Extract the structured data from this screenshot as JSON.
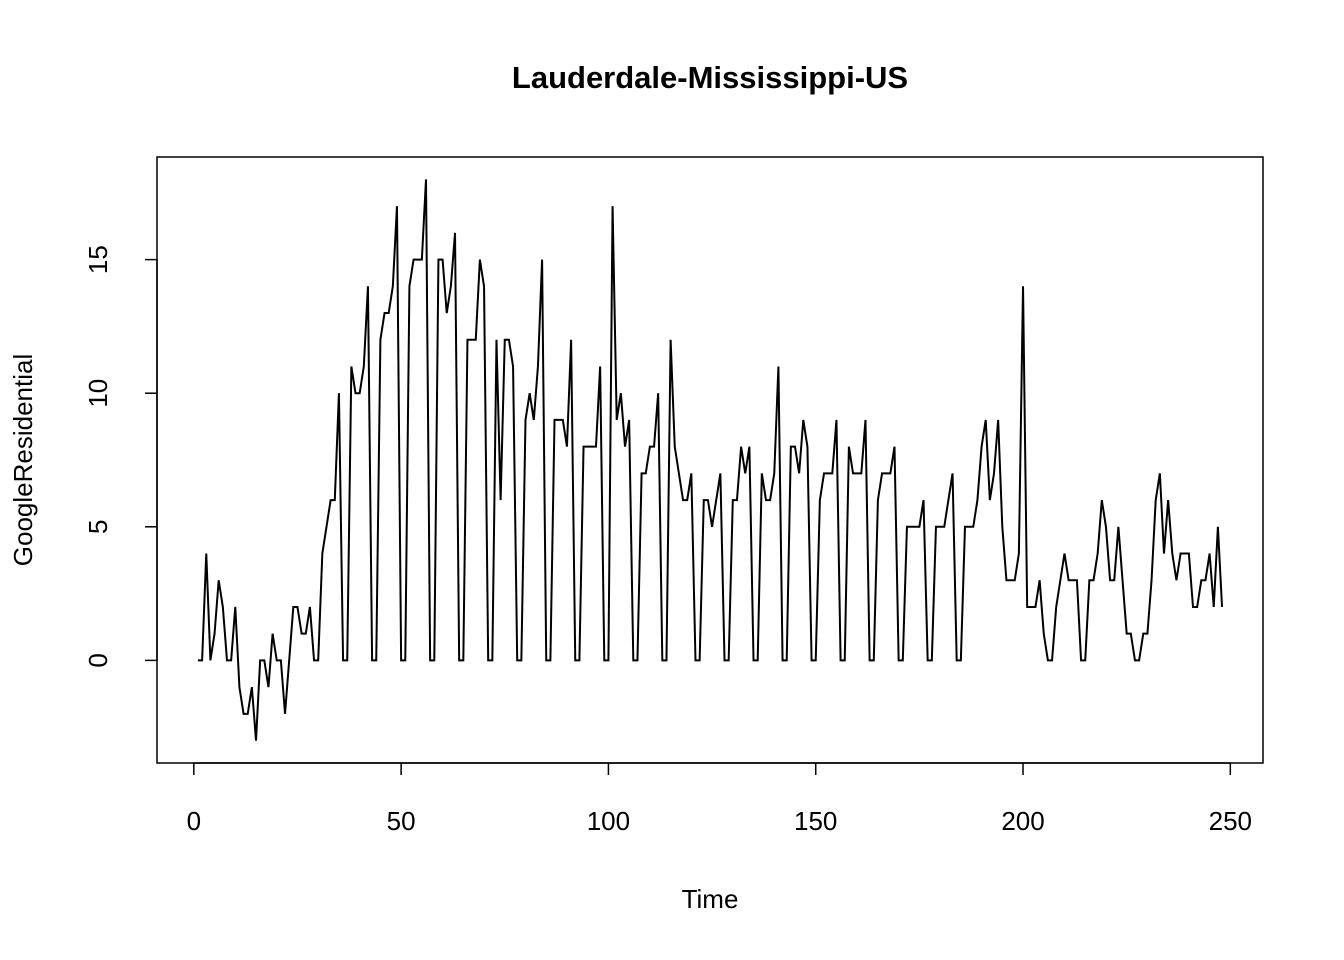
{
  "chart_data": {
    "type": "line",
    "title": "Lauderdale-Mississippi-US",
    "x_label": "Time",
    "y_label": "GoogleResidential",
    "x": [
      1,
      2,
      3,
      4,
      5,
      6,
      7,
      8,
      9,
      10,
      11,
      12,
      13,
      14,
      15,
      16,
      17,
      18,
      19,
      20,
      21,
      22,
      23,
      24,
      25,
      26,
      27,
      28,
      29,
      30,
      31,
      32,
      33,
      34,
      35,
      36,
      37,
      38,
      39,
      40,
      41,
      42,
      43,
      44,
      45,
      46,
      47,
      48,
      49,
      50,
      51,
      52,
      53,
      54,
      55,
      56,
      57,
      58,
      59,
      60,
      61,
      62,
      63,
      64,
      65,
      66,
      67,
      68,
      69,
      70,
      71,
      72,
      73,
      74,
      75,
      76,
      77,
      78,
      79,
      80,
      81,
      82,
      83,
      84,
      85,
      86,
      87,
      88,
      89,
      90,
      91,
      92,
      93,
      94,
      95,
      96,
      97,
      98,
      99,
      100,
      101,
      102,
      103,
      104,
      105,
      106,
      107,
      108,
      109,
      110,
      111,
      112,
      113,
      114,
      115,
      116,
      117,
      118,
      119,
      120,
      121,
      122,
      123,
      124,
      125,
      126,
      127,
      128,
      129,
      130,
      131,
      132,
      133,
      134,
      135,
      136,
      137,
      138,
      139,
      140,
      141,
      142,
      143,
      144,
      145,
      146,
      147,
      148,
      149,
      150,
      151,
      152,
      153,
      154,
      155,
      156,
      157,
      158,
      159,
      160,
      161,
      162,
      163,
      164,
      165,
      166,
      167,
      168,
      169,
      170,
      171,
      172,
      173,
      174,
      175,
      176,
      177,
      178,
      179,
      180,
      181,
      182,
      183,
      184,
      185,
      186,
      187,
      188,
      189,
      190,
      191,
      192,
      193,
      194,
      195,
      196,
      197,
      198,
      199,
      200,
      201,
      202,
      203,
      204,
      205,
      206,
      207,
      208,
      209,
      210,
      211,
      212,
      213,
      214,
      215,
      216,
      217,
      218,
      219,
      220,
      221,
      222,
      223,
      224,
      225,
      226,
      227,
      228,
      229,
      230,
      231,
      232,
      233,
      234,
      235,
      236,
      237,
      238,
      239,
      240,
      241,
      242,
      243,
      244,
      245,
      246,
      247,
      248
    ],
    "values": [
      0,
      0,
      4,
      0,
      1,
      3,
      2,
      0,
      0,
      2,
      -1,
      -2,
      -2,
      -1,
      -3,
      0,
      0,
      -1,
      1,
      0,
      0,
      -2,
      0,
      2,
      2,
      1,
      1,
      2,
      0,
      0,
      4,
      5,
      6,
      6,
      10,
      0,
      0,
      11,
      10,
      10,
      11,
      14,
      0,
      0,
      12,
      13,
      13,
      14,
      17,
      0,
      0,
      14,
      15,
      15,
      15,
      18,
      0,
      0,
      15,
      15,
      13,
      14,
      16,
      0,
      0,
      12,
      12,
      12,
      15,
      14,
      0,
      0,
      12,
      6,
      12,
      12,
      11,
      0,
      0,
      9,
      10,
      9,
      11,
      15,
      0,
      0,
      9,
      9,
      9,
      8,
      12,
      0,
      0,
      8,
      8,
      8,
      8,
      11,
      0,
      0,
      17,
      9,
      10,
      8,
      9,
      0,
      0,
      7,
      7,
      8,
      8,
      10,
      0,
      0,
      12,
      8,
      7,
      6,
      6,
      7,
      0,
      0,
      6,
      6,
      5,
      6,
      7,
      0,
      0,
      6,
      6,
      8,
      7,
      8,
      0,
      0,
      7,
      6,
      6,
      7,
      11,
      0,
      0,
      8,
      8,
      7,
      9,
      8,
      0,
      0,
      6,
      7,
      7,
      7,
      9,
      0,
      0,
      8,
      7,
      7,
      7,
      9,
      0,
      0,
      6,
      7,
      7,
      7,
      8,
      0,
      0,
      5,
      5,
      5,
      5,
      6,
      0,
      0,
      5,
      5,
      5,
      6,
      7,
      0,
      0,
      5,
      5,
      5,
      6,
      8,
      9,
      6,
      7,
      9,
      5,
      3,
      3,
      3,
      4,
      14,
      2,
      2,
      2,
      3,
      1,
      0,
      0,
      2,
      3,
      4,
      3,
      3,
      3,
      0,
      0,
      3,
      3,
      4,
      6,
      5,
      3,
      3,
      5,
      3,
      1,
      1,
      0,
      0,
      1,
      1,
      3,
      6,
      7,
      4,
      6,
      4,
      3,
      4,
      4,
      4,
      2,
      2,
      3,
      3,
      4,
      2,
      5,
      2
    ],
    "color": "#000000",
    "xlim": [
      -8.88,
      257.88
    ],
    "ylim": [
      -3.84,
      18.84
    ],
    "xticks": [
      0,
      50,
      100,
      150,
      200,
      250
    ],
    "yticks": [
      0,
      5,
      10,
      15
    ]
  }
}
